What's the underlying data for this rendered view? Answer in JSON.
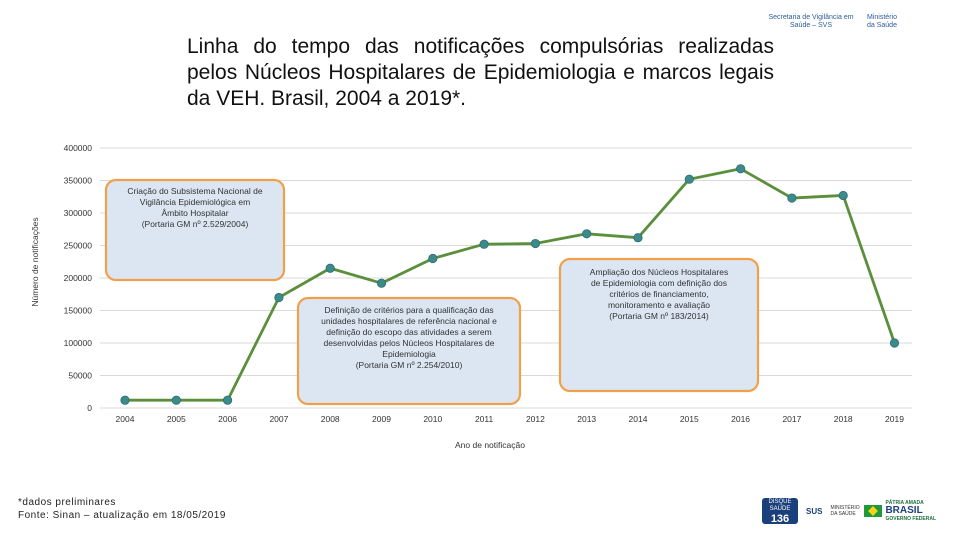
{
  "header": {
    "logo_svs": "Secretaria de Vigilância em Saúde – SVS",
    "logo_ministerio": "Ministério da Saúde"
  },
  "title": "Linha do tempo das notificações compulsórias realizadas pelos Núcleos Hospitalares de Epidemiologia e marcos legais da VEH. Brasil, 2004 a 2019*.",
  "chart_data": {
    "type": "line",
    "x": [
      "2004",
      "2005",
      "2006",
      "2007",
      "2008",
      "2009",
      "2010",
      "2011",
      "2012",
      "2013",
      "2014",
      "2015",
      "2016",
      "2017",
      "2018",
      "2019"
    ],
    "values": [
      12000,
      12000,
      12000,
      170000,
      215000,
      192000,
      230000,
      252000,
      253000,
      268000,
      262000,
      352000,
      368000,
      323000,
      327000,
      100000
    ],
    "ylabel": "Número de notificações",
    "xlabel": "Ano de notificação",
    "ylim": [
      0,
      400000
    ],
    "yticks": [
      0,
      50000,
      100000,
      150000,
      200000,
      250000,
      300000,
      350000,
      400000
    ],
    "grid": true,
    "line_color": "#5b8f3c",
    "marker_color": "#3d8a8c",
    "annotations": [
      {
        "id": "ann1",
        "text": [
          "Criação do Subsistema Nacional de",
          "Vigilância Epidemiológica em",
          "Âmbito Hospitalar",
          "(Portaria GM nº 2.529/2004)"
        ]
      },
      {
        "id": "ann2",
        "text": [
          "Definição de critérios para a qualificação das",
          "unidades hospitalares de referência nacional e",
          "definição do escopo das atividades a serem",
          "desenvolvidas pelos Núcleos Hospitalares de",
          "Epidemiologia",
          "(Portaria GM nº 2.254/2010)"
        ]
      },
      {
        "id": "ann3",
        "text": [
          "Ampliação dos Núcleos Hospitalares",
          "de Epidemiologia com definição dos",
          "critérios de financiamento,",
          "monitoramento e avaliação",
          "(Portaria GM nº 183/2014)"
        ]
      }
    ]
  },
  "footnote": {
    "line1": "*dados preliminares",
    "line2": "Fonte: Sinan – atualização em 18/05/2019"
  },
  "footer": {
    "disque_label": "DISQUE SAÚDE",
    "disque_number": "136",
    "sus_label": "SUS",
    "ministerio_label": "MINISTÉRIO DA SAÚDE",
    "brasil_top": "PÁTRIA AMADA",
    "brasil_big": "BRASIL",
    "brasil_bottom": "GOVERNO FEDERAL"
  }
}
